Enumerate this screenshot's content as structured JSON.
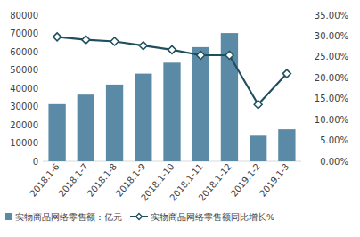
{
  "chart_data": {
    "type": "bar",
    "categories": [
      "2018.1-6",
      "2018.1-7",
      "2018.1-8",
      "2018.1-9",
      "2018.1-10",
      "2018.1-11",
      "2018.1-12",
      "2019.1-2",
      "2019.1-3"
    ],
    "series": [
      {
        "name": "实物商品网络零售额：亿元",
        "type": "bar",
        "color": "#5b8aa6",
        "values": [
          31300,
          36500,
          42000,
          48000,
          54000,
          62500,
          70200,
          14000,
          17500
        ]
      },
      {
        "name": "实物商品网络零售额同比增长%",
        "type": "line",
        "axis": "y2",
        "color": "#1f4e5e",
        "marker": "diamond",
        "values": [
          29.8,
          29.1,
          28.7,
          27.7,
          26.7,
          25.4,
          25.4,
          13.6,
          21.0
        ]
      }
    ],
    "ylim": [
      0,
      80000
    ],
    "yticks": [
      0,
      10000,
      20000,
      30000,
      40000,
      50000,
      60000,
      70000,
      80000
    ],
    "y2lim": [
      0,
      35
    ],
    "y2ticks": [
      {
        "value": 0,
        "label": "0.00%"
      },
      {
        "value": 5,
        "label": "5.00%"
      },
      {
        "value": 10,
        "label": "10.00%"
      },
      {
        "value": 15,
        "label": "15.00%"
      },
      {
        "value": 20,
        "label": "20.00%"
      },
      {
        "value": 25,
        "label": "25.00%"
      },
      {
        "value": 30,
        "label": "30.00%"
      },
      {
        "value": 35,
        "label": "35.00%"
      }
    ],
    "grid": false,
    "legend": "bottom"
  }
}
